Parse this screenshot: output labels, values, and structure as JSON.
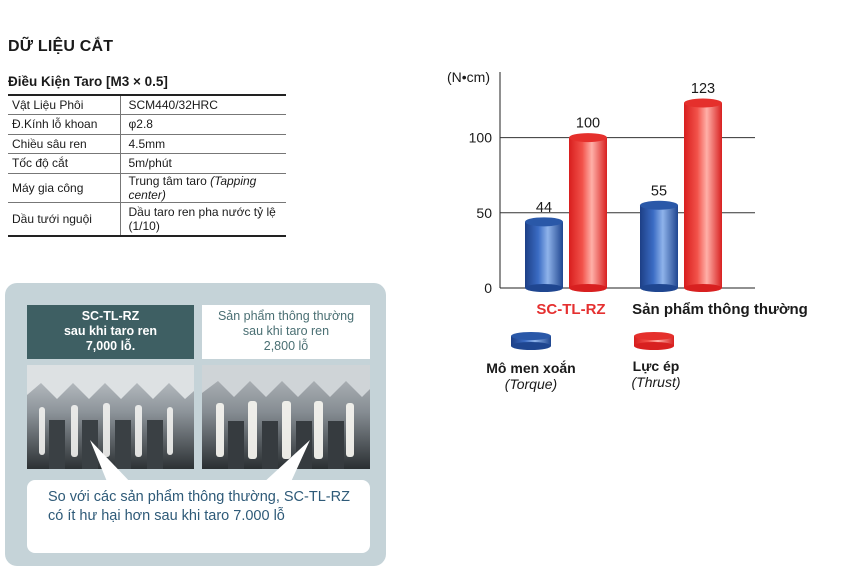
{
  "header": {
    "title": "DỮ LIỆU CẮT"
  },
  "conditions": {
    "title": "Điều Kiện Taro [M3 × 0.5]",
    "rows": [
      {
        "label": "Vật Liệu Phôi",
        "value": "SCM440/32HRC",
        "note": ""
      },
      {
        "label": "Đ.Kính lỗ khoan",
        "value": "φ2.8",
        "note": ""
      },
      {
        "label": "Chiều sâu ren",
        "value": "4.5mm",
        "note": ""
      },
      {
        "label": "Tốc độ cắt",
        "value": "5m/phút",
        "note": ""
      },
      {
        "label": "Máy gia công",
        "value": "Trung tâm taro ",
        "note": "(Tapping center)"
      },
      {
        "label": "Dầu tưới nguội",
        "value": "Dầu taro ren pha nước tỷ lệ (1/10)",
        "note": ""
      }
    ]
  },
  "photos": {
    "a": {
      "line1": "SC-TL-RZ",
      "line2": "sau khi taro ren",
      "line3": "7,000 lỗ."
    },
    "b": {
      "line1": "Sản phẩm thông thường",
      "line2": "sau khi taro ren",
      "line3": "2,800 lỗ"
    },
    "callout": "So với các sản phẩm thông thường, SC-TL-RZ có ít hư hại hơn sau khi taro 7.000 lỗ"
  },
  "chart_data": {
    "type": "bar",
    "unit_label": "(N•cm)",
    "categories": [
      "SC-TL-RZ",
      "Sản phẩm thông thường"
    ],
    "category_colors": [
      "#e53030",
      "#1a1a1a"
    ],
    "series": [
      {
        "name": "Mô men xoắn",
        "name_sub": "(Torque)",
        "values": [
          44,
          55
        ],
        "color": "#2f5fb0"
      },
      {
        "name": "Lực ép",
        "name_sub": "(Thrust)",
        "values": [
          100,
          123
        ],
        "color": "#f04038"
      }
    ],
    "yticks": [
      0,
      50,
      100
    ],
    "ylim": [
      0,
      125
    ],
    "grid": true
  }
}
